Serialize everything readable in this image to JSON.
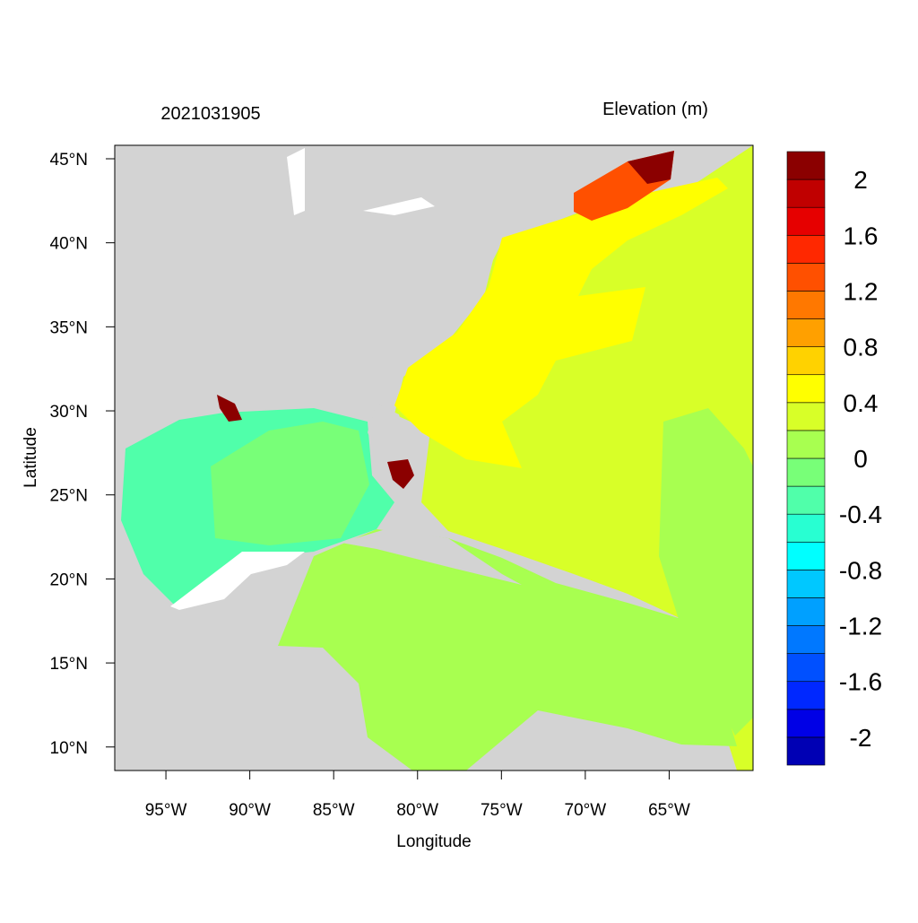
{
  "header": {
    "title": "2021031905",
    "variable": "Elevation (m)"
  },
  "map": {
    "x_label": "Longitude",
    "y_label": "Latitude",
    "xlim": [
      -98.05,
      -60
    ],
    "ylim": [
      8.6,
      45.8
    ],
    "xticks": [
      {
        "value": -95,
        "label": "95°W"
      },
      {
        "value": -90,
        "label": "90°W"
      },
      {
        "value": -85,
        "label": "85°W"
      },
      {
        "value": -80,
        "label": "80°W"
      },
      {
        "value": -75,
        "label": "75°W"
      },
      {
        "value": -70,
        "label": "70°W"
      },
      {
        "value": -65,
        "label": "65°W"
      }
    ],
    "yticks": [
      {
        "value": 10,
        "label": "10°N"
      },
      {
        "value": 15,
        "label": "15°N"
      },
      {
        "value": 20,
        "label": "20°N"
      },
      {
        "value": 25,
        "label": "25°N"
      },
      {
        "value": 30,
        "label": "30°N"
      },
      {
        "value": 35,
        "label": "35°N"
      },
      {
        "value": 40,
        "label": "40°N"
      },
      {
        "value": 45,
        "label": "45°N"
      }
    ]
  },
  "colorbar": {
    "levels": [
      -2.2,
      -2,
      -1.8,
      -1.6,
      -1.4,
      -1.2,
      -1,
      -0.8,
      -0.6,
      -0.4,
      -0.2,
      0,
      0.2,
      0.4,
      0.6,
      0.8,
      1,
      1.2,
      1.4,
      1.6,
      1.8,
      2,
      2.2
    ],
    "colors": [
      "#0000b4",
      "#0000e6",
      "#0028ff",
      "#0050ff",
      "#0078ff",
      "#00a0ff",
      "#00c8ff",
      "#00ffff",
      "#28ffd2",
      "#50ffaa",
      "#78ff78",
      "#a8ff50",
      "#d8ff28",
      "#ffff00",
      "#ffd200",
      "#ffa000",
      "#ff7800",
      "#ff5000",
      "#ff2800",
      "#e60000",
      "#c00000",
      "#8b0000"
    ],
    "ticks": [
      -2,
      -1.6,
      -1.2,
      -0.8,
      -0.4,
      0,
      0.4,
      0.8,
      1.2,
      1.6,
      2
    ]
  }
}
